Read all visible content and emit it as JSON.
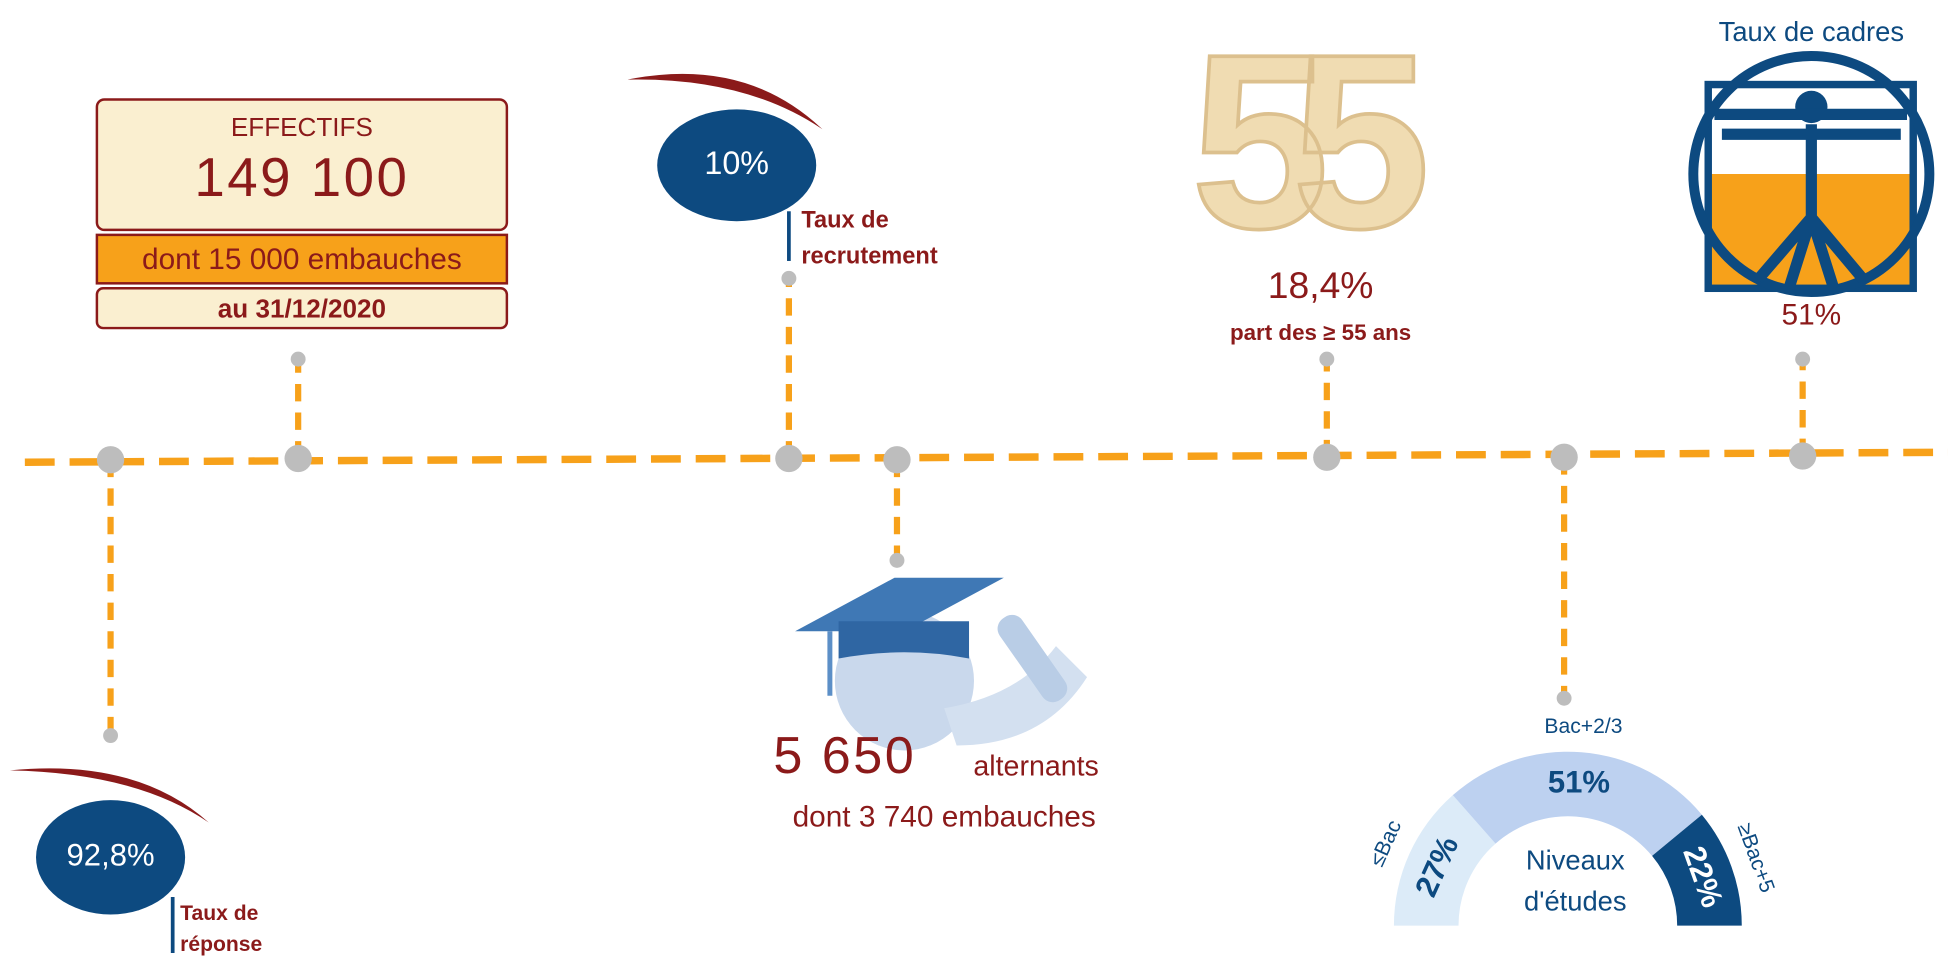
{
  "effectifs": {
    "title": "EFFECTIFS",
    "total": "149 100",
    "hires": "dont 15 000 embauches",
    "date": "au 31/12/2020"
  },
  "recrutement": {
    "value": "10%",
    "label_line1": "Taux de",
    "label_line2": "recrutement"
  },
  "seniors": {
    "graphic": "55",
    "value": "18,4%",
    "label": "part des ≥ 55 ans"
  },
  "cadres": {
    "title": "Taux de cadres",
    "value": "51%"
  },
  "reponse": {
    "value": "92,8%",
    "label_line1": "Taux de",
    "label_line2": "réponse"
  },
  "alternants": {
    "count": "5 650",
    "label": "alternants",
    "hires": "dont 3 740 embauches"
  },
  "education": {
    "type": "gauge",
    "title_line1": "Niveaux",
    "title_line2": "d'études",
    "categories": [
      "≤Bac",
      "Bac+2/3",
      "≥Bac+5"
    ],
    "values": [
      27,
      51,
      22
    ],
    "value_labels": [
      "27%",
      "51%",
      "22%"
    ],
    "colors": [
      "#dcebf8",
      "#bdd1f0",
      "#0d4a80"
    ]
  }
}
